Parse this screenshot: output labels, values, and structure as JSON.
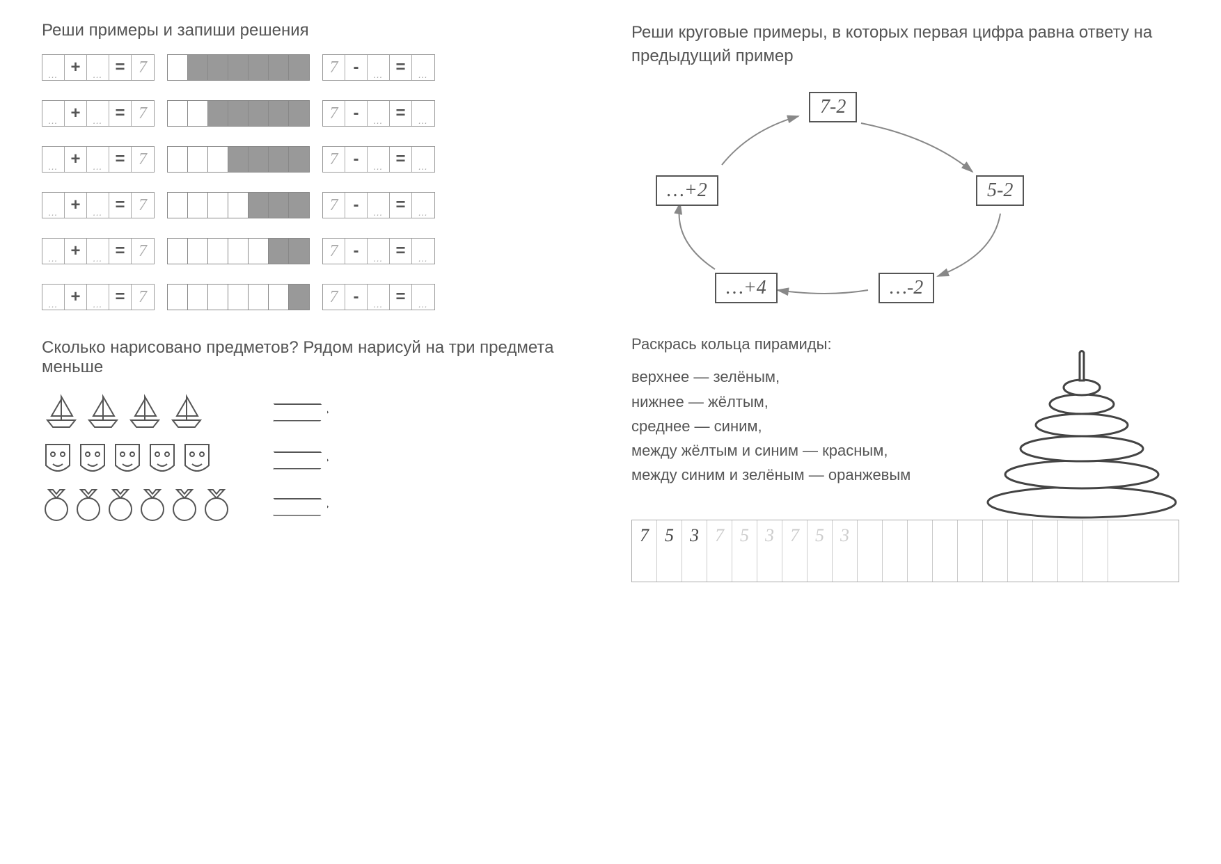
{
  "left": {
    "title1": "Реши примеры и запиши решения",
    "title2": "Сколько нарисовано предметов? Рядом нарисуй на три предмета меньше",
    "rows": [
      {
        "white": 1,
        "gray": 6
      },
      {
        "white": 2,
        "gray": 5
      },
      {
        "white": 3,
        "gray": 4
      },
      {
        "white": 4,
        "gray": 3
      },
      {
        "white": 5,
        "gray": 2
      },
      {
        "white": 6,
        "gray": 1
      }
    ],
    "plus_fixed": "7",
    "minus_first": "7",
    "objects": [
      {
        "type": "boat",
        "count": 4
      },
      {
        "type": "mask",
        "count": 5
      },
      {
        "type": "medal",
        "count": 6
      }
    ]
  },
  "right": {
    "title1": "Реши круговые примеры, в которых первая цифра равна ответу на предыдущий пример",
    "nodes": {
      "top": "7-2",
      "right": "5-2",
      "botright": "…-2",
      "botleft": "…+4",
      "left": "…+2"
    },
    "pyr_title": "Раскрась кольца пирамиды:",
    "pyr_lines": [
      "верхнее — зелёным,",
      "нижнее — жёлтым,",
      "среднее — синим,",
      "между жёлтым и синим — красным,",
      "между синим и зелёным — оранжевым"
    ],
    "grid_dark": [
      "7",
      "5",
      "3"
    ],
    "grid_light": [
      "7",
      "5",
      "3",
      "7",
      "5",
      "3"
    ],
    "grid_total_cols": 20
  },
  "colors": {
    "text": "#555555",
    "border": "#888888",
    "filled": "#999999",
    "light": "#cccccc"
  }
}
